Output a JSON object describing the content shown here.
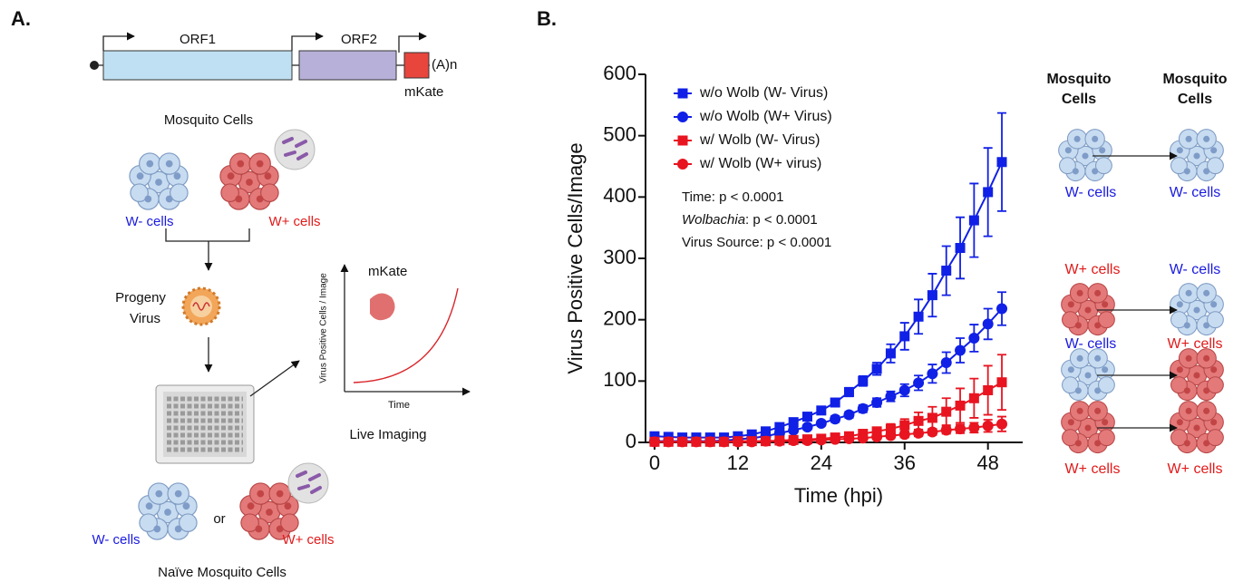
{
  "panel_labels": [
    "A.",
    "B."
  ],
  "panel_a": {
    "orf1": "ORF1",
    "orf2": "ORF2",
    "polya": "(A)n",
    "mkate": "mKate",
    "mosquito_cells": "Mosquito Cells",
    "w_minus": "W- cells",
    "w_plus": "W+ cells",
    "progeny": [
      "Progeny",
      "Virus"
    ],
    "inset_ylabel": "Virus Positive Cells / Image",
    "inset_xlabel": "Time",
    "inset_title": "mKate",
    "live_imaging": "Live Imaging",
    "naive_w_minus": "W- cells",
    "or": "or",
    "naive_w_plus": "W+ cells",
    "naive_title": "Naïve Mosquito Cells"
  },
  "chart_data": {
    "type": "line",
    "x": [
      0,
      2,
      4,
      6,
      8,
      10,
      12,
      14,
      16,
      18,
      20,
      22,
      24,
      26,
      28,
      30,
      32,
      34,
      36,
      38,
      40,
      42,
      44,
      46,
      48,
      50
    ],
    "xlabel": "Time (hpi)",
    "ylabel": "Virus Positive Cells/Image",
    "xlim": [
      -1.3,
      53
    ],
    "ylim": [
      0,
      600
    ],
    "xticks": [
      0,
      12,
      24,
      36,
      48
    ],
    "yticks": [
      0,
      100,
      200,
      300,
      400,
      500,
      600
    ],
    "legend": "top-left",
    "stats": {
      "time": "Time: p < 0.0001",
      "wolbachia_term": "Wolbachia",
      "wolbachia_p": ": p < 0.0001",
      "virus_source": "Virus Source: p < 0.0001"
    },
    "series": [
      {
        "name": "w/o Wolb (W- Virus)",
        "color": "#1020e6",
        "marker": "square",
        "values": [
          10,
          9,
          8,
          8,
          8,
          8,
          10,
          13,
          18,
          25,
          33,
          42,
          52,
          65,
          82,
          100,
          120,
          145,
          173,
          205,
          240,
          280,
          317,
          362,
          408,
          457
        ],
        "errors": [
          4,
          4,
          4,
          4,
          4,
          4,
          4,
          4,
          4,
          5,
          5,
          5,
          6,
          6,
          7,
          8,
          10,
          15,
          22,
          28,
          35,
          40,
          50,
          60,
          72,
          80
        ]
      },
      {
        "name": "w/o Wolb (W+ Virus)",
        "color": "#1020e6",
        "marker": "circle",
        "values": [
          2,
          2,
          2,
          2,
          2,
          3,
          5,
          7,
          10,
          15,
          20,
          25,
          31,
          38,
          45,
          55,
          65,
          75,
          85,
          97,
          112,
          130,
          150,
          170,
          193,
          218
        ],
        "errors": [
          3,
          3,
          3,
          3,
          3,
          3,
          3,
          3,
          4,
          4,
          4,
          4,
          4,
          5,
          5,
          6,
          7,
          8,
          10,
          12,
          15,
          17,
          20,
          22,
          25,
          27
        ]
      },
      {
        "name": "w/ Wolb (W- Virus)",
        "color": "#e81420",
        "marker": "square",
        "values": [
          1,
          1,
          1,
          1,
          1,
          1,
          2,
          2,
          2,
          3,
          4,
          5,
          6,
          8,
          10,
          14,
          18,
          22,
          28,
          35,
          40,
          50,
          60,
          72,
          85,
          98
        ],
        "errors": [
          3,
          3,
          3,
          3,
          3,
          3,
          3,
          3,
          3,
          3,
          3,
          3,
          3,
          3,
          4,
          5,
          6,
          8,
          10,
          14,
          18,
          22,
          28,
          32,
          40,
          45
        ]
      },
      {
        "name": "w/ Wolb (W+ virus)",
        "color": "#e81420",
        "marker": "circle",
        "values": [
          1,
          1,
          1,
          1,
          1,
          1,
          1,
          1,
          2,
          2,
          3,
          3,
          4,
          5,
          6,
          7,
          9,
          11,
          13,
          15,
          17,
          20,
          22,
          24,
          27,
          30
        ],
        "errors": [
          2,
          2,
          2,
          2,
          2,
          2,
          2,
          2,
          2,
          2,
          3,
          3,
          3,
          3,
          3,
          3,
          4,
          4,
          5,
          5,
          5,
          6,
          7,
          8,
          10,
          12
        ]
      }
    ]
  },
  "panel_b_schematic": {
    "header_left": [
      "Mosquito",
      "Cells"
    ],
    "header_right": [
      "Mosquito",
      "Cells"
    ],
    "row1": [
      "W- cells",
      "W- cells"
    ],
    "row2_top": [
      "W+ cells",
      "W- cells"
    ],
    "row2_bottom": [
      "W- cells",
      "W+ cells"
    ],
    "row3": [
      "W+ cells",
      "W+ cells"
    ]
  }
}
